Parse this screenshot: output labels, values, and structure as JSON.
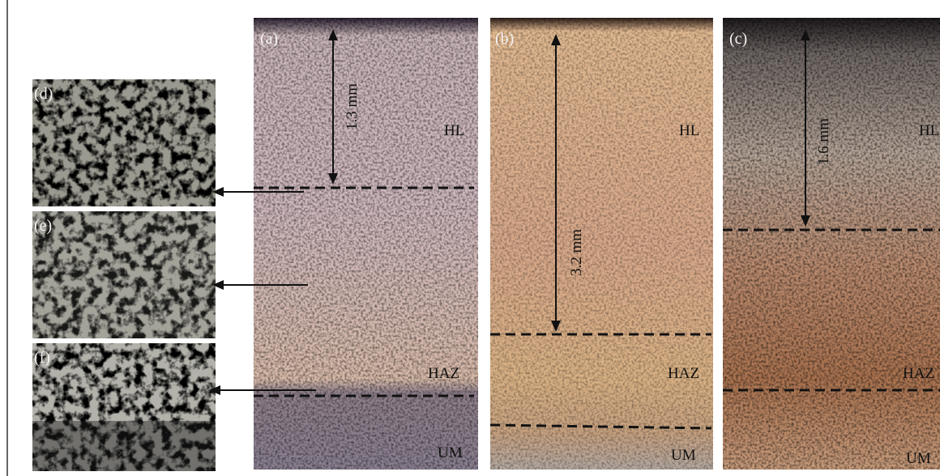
{
  "panels": [
    {
      "label": "(a)",
      "measurement": "1.3 mm",
      "zones": [
        "HL",
        "HAZ",
        "UM"
      ]
    },
    {
      "label": "(b)",
      "measurement": "3.2 mm",
      "zones": [
        "HL",
        "HAZ",
        "UM"
      ]
    },
    {
      "label": "(c)",
      "measurement": "1.6 mm",
      "zones": [
        "HL",
        "HAZ",
        "UM"
      ]
    }
  ],
  "insets": [
    {
      "label": "(d)"
    },
    {
      "label": "(e)"
    },
    {
      "label": "(f)"
    }
  ]
}
